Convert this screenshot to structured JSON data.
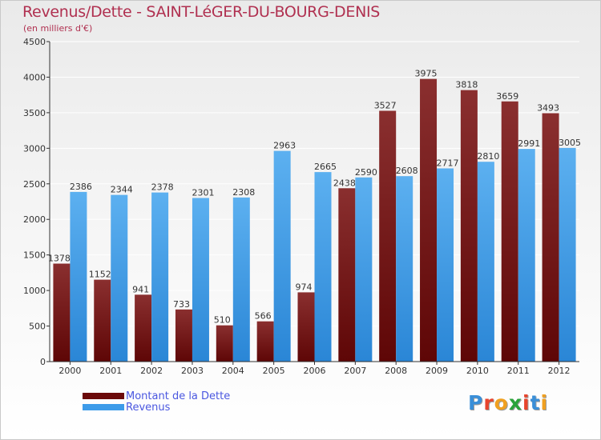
{
  "header": {
    "title": "Revenus/Dette - SAINT-LéGER-DU-BOURG-DENIS",
    "subtitle": "(en milliers d'€)"
  },
  "legend": [
    {
      "label": "Montant de la Dette",
      "color": "#6b0a0a"
    },
    {
      "label": "Revenus",
      "color": "#3d9be9"
    }
  ],
  "logo": {
    "text": "Proxiti",
    "letter_colors": [
      "#3a8fd8",
      "#e8442c",
      "#f0a020",
      "#2aa33a",
      "#e8442c",
      "#3a8fd8",
      "#f0a020"
    ]
  },
  "colors": {
    "dette_dark": "#5e0606",
    "dette_light": "#8a2f2f",
    "revenus_dark": "#2a86d6",
    "revenus_light": "#5cb0f0",
    "axis": "#333333",
    "grid": "#ffffff"
  },
  "chart_data": {
    "type": "bar",
    "title": "Revenus/Dette - SAINT-LéGER-DU-BOURG-DENIS",
    "subtitle": "(en milliers d'€)",
    "categories": [
      "2000",
      "2001",
      "2002",
      "2003",
      "2004",
      "2005",
      "2006",
      "2007",
      "2008",
      "2009",
      "2010",
      "2011",
      "2012"
    ],
    "series": [
      {
        "name": "Montant de la Dette",
        "values": [
          1378,
          1152,
          941,
          733,
          510,
          566,
          974,
          2438,
          3527,
          3975,
          3818,
          3659,
          3493
        ],
        "labels": [
          "1378",
          "1152",
          "941",
          "733",
          "510",
          "566",
          "974",
          "2438",
          "3527",
          "3975",
          "3818",
          "3659",
          "3493"
        ]
      },
      {
        "name": "Revenus",
        "values": [
          2386,
          2344,
          2378,
          2301,
          2308,
          2963,
          2665,
          2590,
          2608,
          2717,
          2810,
          2991,
          3005
        ],
        "labels": [
          "2386",
          "2344",
          "2378",
          "2301",
          "2308",
          "2963",
          "2665",
          "2590",
          "2608",
          "2717",
          "2810",
          "2991",
          "3005"
        ]
      }
    ],
    "ylim": [
      0,
      4500
    ],
    "yticks": [
      "0",
      "500",
      "1000",
      "1500",
      "2000",
      "2500",
      "3000",
      "3500",
      "4000",
      "4500"
    ],
    "grid": true,
    "legend_position": "bottom-left"
  }
}
